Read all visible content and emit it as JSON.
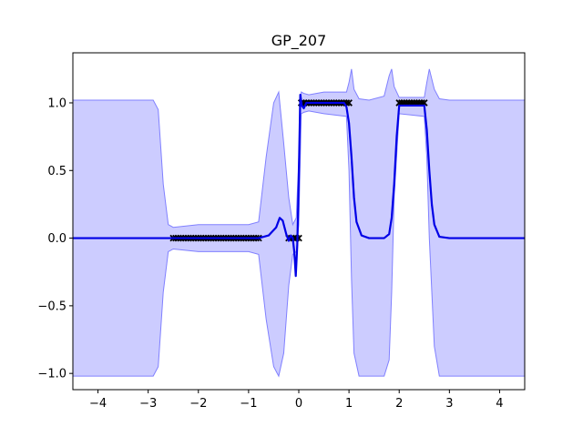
{
  "chart_data": {
    "type": "line",
    "title": "GP_207",
    "xlabel": "",
    "ylabel": "",
    "xlim": [
      -4.5,
      4.5
    ],
    "ylim": [
      -1.12,
      1.37
    ],
    "grid": false,
    "legend": "none",
    "x_ticks": [
      -4,
      -3,
      -2,
      -1,
      0,
      1,
      2,
      3,
      4
    ],
    "x_tick_labels": [
      "−4",
      "−3",
      "−2",
      "−1",
      "0",
      "1",
      "2",
      "3",
      "4"
    ],
    "y_ticks": [
      -1.0,
      -0.5,
      0.0,
      0.5,
      1.0
    ],
    "y_tick_labels": [
      "−1.0",
      "−0.5",
      "0.0",
      "0.5",
      "1.0"
    ],
    "colors": {
      "mean_line": "#0000e6",
      "band_fill": "#0000ff",
      "band_edge": "#8080ff",
      "markers": "#000000"
    },
    "series": [
      {
        "kind": "mean",
        "x": [
          -4.5,
          -2.6,
          -2.5,
          -0.8,
          -0.6,
          -0.45,
          -0.38,
          -0.32,
          -0.25,
          -0.2,
          -0.16,
          -0.12,
          -0.09,
          -0.06,
          -0.03,
          0.0,
          0.03,
          0.06,
          0.1,
          0.15,
          0.25,
          0.4,
          0.6,
          0.8,
          0.9,
          0.95,
          1.0,
          1.05,
          1.1,
          1.15,
          1.25,
          1.4,
          1.7,
          1.8,
          1.85,
          1.9,
          1.95,
          2.0,
          2.5,
          2.55,
          2.6,
          2.65,
          2.7,
          2.8,
          3.0,
          4.5
        ],
        "y": [
          0.0,
          0.0,
          0.0,
          0.0,
          0.02,
          0.08,
          0.15,
          0.13,
          0.03,
          -0.02,
          0.02,
          0.0,
          -0.1,
          -0.28,
          -0.05,
          0.45,
          1.06,
          0.98,
          0.96,
          1.0,
          1.0,
          1.0,
          1.0,
          1.0,
          1.0,
          0.97,
          0.85,
          0.6,
          0.3,
          0.12,
          0.02,
          0.0,
          0.0,
          0.03,
          0.15,
          0.4,
          0.75,
          0.98,
          0.98,
          0.8,
          0.5,
          0.25,
          0.1,
          0.01,
          0.0,
          0.0
        ]
      },
      {
        "kind": "confidence_band",
        "x": [
          -4.5,
          -2.9,
          -2.8,
          -2.7,
          -2.6,
          -2.5,
          -2.0,
          -1.0,
          -0.8,
          -0.65,
          -0.5,
          -0.4,
          -0.3,
          -0.2,
          -0.12,
          -0.05,
          0.0,
          0.05,
          0.1,
          0.2,
          0.5,
          0.95,
          1.0,
          1.05,
          1.1,
          1.2,
          1.4,
          1.7,
          1.8,
          1.85,
          1.9,
          2.0,
          2.5,
          2.55,
          2.6,
          2.7,
          2.8,
          3.0,
          4.5
        ],
        "upper": [
          1.02,
          1.02,
          0.95,
          0.4,
          0.1,
          0.08,
          0.1,
          0.1,
          0.12,
          0.6,
          1.0,
          1.08,
          0.7,
          0.3,
          0.1,
          0.15,
          0.6,
          1.08,
          1.07,
          1.06,
          1.08,
          1.08,
          1.15,
          1.25,
          1.1,
          1.03,
          1.02,
          1.05,
          1.2,
          1.25,
          1.12,
          1.04,
          1.04,
          1.15,
          1.25,
          1.1,
          1.03,
          1.02,
          1.02
        ],
        "lower": [
          -1.02,
          -1.02,
          -0.95,
          -0.4,
          -0.1,
          -0.08,
          -0.1,
          -0.1,
          -0.12,
          -0.6,
          -0.95,
          -1.02,
          -0.85,
          -0.35,
          -0.12,
          -0.1,
          0.1,
          0.92,
          0.93,
          0.94,
          0.92,
          0.9,
          0.5,
          -0.3,
          -0.85,
          -1.02,
          -1.02,
          -1.02,
          -0.9,
          -0.4,
          0.3,
          0.92,
          0.9,
          0.6,
          0.0,
          -0.8,
          -1.02,
          -1.02,
          -1.02
        ]
      },
      {
        "kind": "observations",
        "x": [
          -2.5,
          -2.45,
          -2.4,
          -2.35,
          -2.3,
          -2.25,
          -2.2,
          -2.15,
          -2.1,
          -2.05,
          -2.0,
          -1.95,
          -1.9,
          -1.85,
          -1.8,
          -1.75,
          -1.7,
          -1.65,
          -1.6,
          -1.55,
          -1.5,
          -1.45,
          -1.4,
          -1.35,
          -1.3,
          -1.25,
          -1.2,
          -1.15,
          -1.1,
          -1.05,
          -1.0,
          -0.95,
          -0.9,
          -0.85,
          -0.8,
          -0.2,
          -0.15,
          -0.1,
          -0.05,
          0.0,
          0.05,
          0.1,
          0.15,
          0.2,
          0.25,
          0.3,
          0.35,
          0.4,
          0.45,
          0.5,
          0.55,
          0.6,
          0.65,
          0.7,
          0.75,
          0.8,
          0.85,
          0.9,
          0.95,
          1.0,
          2.0,
          2.05,
          2.1,
          2.15,
          2.2,
          2.25,
          2.3,
          2.35,
          2.4,
          2.45,
          2.5
        ],
        "y": [
          0,
          0,
          0,
          0,
          0,
          0,
          0,
          0,
          0,
          0,
          0,
          0,
          0,
          0,
          0,
          0,
          0,
          0,
          0,
          0,
          0,
          0,
          0,
          0,
          0,
          0,
          0,
          0,
          0,
          0,
          0,
          0,
          0,
          0,
          0,
          0,
          0,
          0,
          0,
          0,
          1,
          1,
          1,
          1,
          1,
          1,
          1,
          1,
          1,
          1,
          1,
          1,
          1,
          1,
          1,
          1,
          1,
          1,
          1,
          1,
          1,
          1,
          1,
          1,
          1,
          1,
          1,
          1,
          1,
          1,
          1
        ]
      }
    ]
  }
}
